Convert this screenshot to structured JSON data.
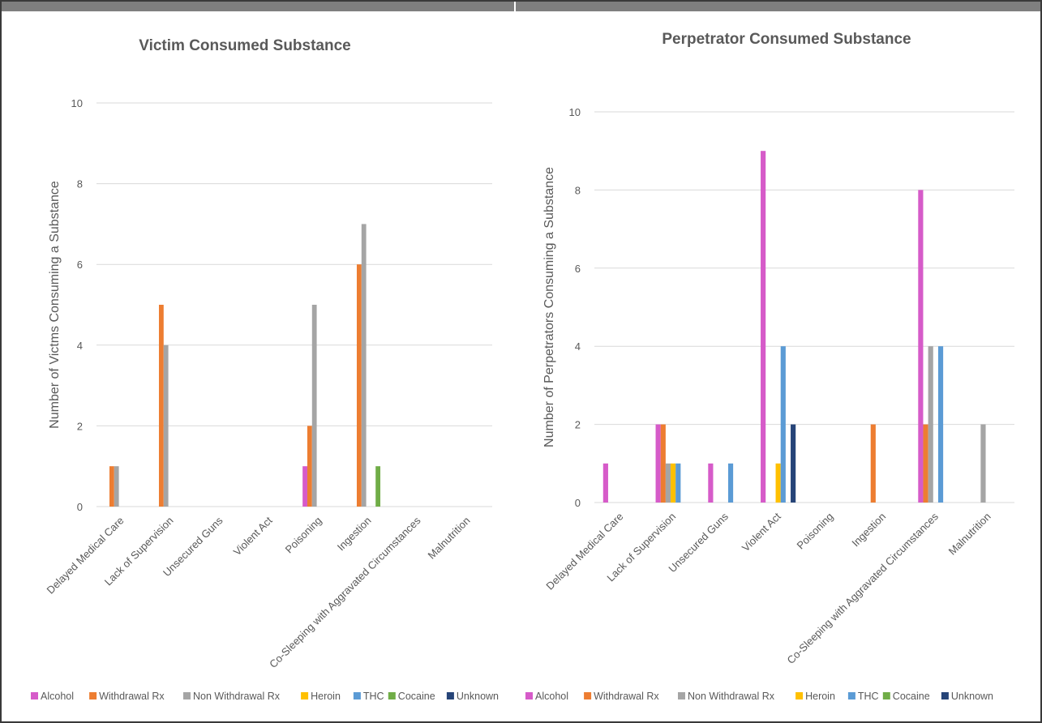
{
  "colors": {
    "Alcohol": "#d65bc9",
    "Withdrawal Rx": "#ed7d31",
    "Non Withdrawal Rx": "#a5a5a5",
    "Heroin": "#ffc000",
    "THC": "#5b9bd5",
    "Cocaine": "#70ad47",
    "Unknown": "#264478"
  },
  "chart_data": [
    {
      "type": "bar",
      "title": "Victim Consumed Substance",
      "ylabel": "Number of Victms Consuming a Substance",
      "xlabel": "",
      "ylim": [
        0,
        10
      ],
      "yticks": [
        0,
        2,
        4,
        6,
        8,
        10
      ],
      "categories": [
        "Delayed Medical Care",
        "Lack of Supervision",
        "Unsecured Guns",
        "Violent Act",
        "Poisoning",
        "Ingestion",
        "Co-Sleeping with Aggravated Circumstances",
        "Malnutrition"
      ],
      "series": [
        {
          "name": "Alcohol",
          "values": [
            0,
            0,
            0,
            0,
            1,
            0,
            0,
            0
          ]
        },
        {
          "name": "Withdrawal Rx",
          "values": [
            1,
            5,
            0,
            0,
            2,
            6,
            0,
            0
          ]
        },
        {
          "name": "Non Withdrawal Rx",
          "values": [
            1,
            4,
            0,
            0,
            5,
            7,
            0,
            0
          ]
        },
        {
          "name": "Heroin",
          "values": [
            0,
            0,
            0,
            0,
            0,
            0,
            0,
            0
          ]
        },
        {
          "name": "THC",
          "values": [
            0,
            0,
            0,
            0,
            0,
            0,
            0,
            0
          ]
        },
        {
          "name": "Cocaine",
          "values": [
            0,
            0,
            0,
            0,
            0,
            1,
            0,
            0
          ]
        },
        {
          "name": "Unknown",
          "values": [
            0,
            0,
            0,
            0,
            0,
            0,
            0,
            0
          ]
        }
      ],
      "legend": "bottom",
      "grid": true
    },
    {
      "type": "bar",
      "title": "Perpetrator Consumed Substance",
      "ylabel": "Number of Perpetrators Consuming a Substance",
      "xlabel": "",
      "ylim": [
        0,
        10
      ],
      "yticks": [
        0,
        2,
        4,
        6,
        8,
        10
      ],
      "categories": [
        "Delayed Medical Care",
        "Lack of Supervision",
        "Unsecured Guns",
        "Violent Act",
        "Poisoning",
        "Ingestion",
        "Co-Sleeping with Aggravated Circumstances",
        "Malnutrition"
      ],
      "series": [
        {
          "name": "Alcohol",
          "values": [
            1,
            2,
            1,
            9,
            0,
            0,
            8,
            0
          ]
        },
        {
          "name": "Withdrawal Rx",
          "values": [
            0,
            2,
            0,
            0,
            0,
            2,
            2,
            0
          ]
        },
        {
          "name": "Non Withdrawal Rx",
          "values": [
            0,
            1,
            0,
            0,
            0,
            0,
            4,
            2
          ]
        },
        {
          "name": "Heroin",
          "values": [
            0,
            1,
            0,
            1,
            0,
            0,
            0,
            0
          ]
        },
        {
          "name": "THC",
          "values": [
            0,
            1,
            1,
            4,
            0,
            0,
            4,
            0
          ]
        },
        {
          "name": "Cocaine",
          "values": [
            0,
            0,
            0,
            0,
            0,
            0,
            0,
            0
          ]
        },
        {
          "name": "Unknown",
          "values": [
            0,
            0,
            0,
            2,
            0,
            0,
            0,
            0
          ]
        }
      ],
      "legend": "bottom",
      "grid": true
    }
  ]
}
